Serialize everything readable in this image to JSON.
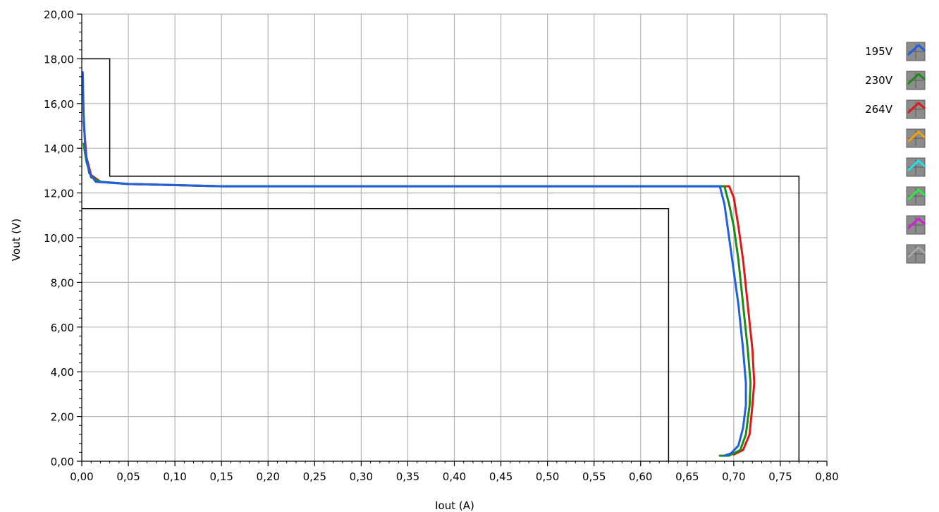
{
  "chart_data": {
    "type": "line",
    "title": "",
    "xlabel": "Iout (A)",
    "ylabel": "Vout (V)",
    "xlim": [
      0,
      0.8
    ],
    "ylim": [
      0,
      20
    ],
    "x_ticks": [
      "0,00",
      "0,05",
      "0,10",
      "0,15",
      "0,20",
      "0,25",
      "0,30",
      "0,35",
      "0,40",
      "0,45",
      "0,50",
      "0,55",
      "0,60",
      "0,65",
      "0,70",
      "0,75",
      "0,80"
    ],
    "y_ticks": [
      "0,00",
      "2,00",
      "4,00",
      "6,00",
      "8,00",
      "10,00",
      "12,00",
      "14,00",
      "16,00",
      "18,00",
      "20,00"
    ],
    "grid": true,
    "legend_position": "right",
    "limit_lines": [
      {
        "name": "upper-limit",
        "color": "#000000",
        "points": [
          [
            0,
            18.0
          ],
          [
            0.03,
            18.0
          ],
          [
            0.03,
            12.75
          ],
          [
            0.77,
            12.75
          ],
          [
            0.77,
            0
          ]
        ]
      },
      {
        "name": "lower-limit",
        "color": "#000000",
        "points": [
          [
            0,
            11.3
          ],
          [
            0.63,
            11.3
          ],
          [
            0.63,
            0
          ]
        ]
      }
    ],
    "series": [
      {
        "name": "195V",
        "color": "#1f5fe0",
        "points": [
          [
            0.001,
            17.4
          ],
          [
            0.002,
            15.5
          ],
          [
            0.004,
            13.8
          ],
          [
            0.008,
            12.9
          ],
          [
            0.015,
            12.5
          ],
          [
            0.05,
            12.4
          ],
          [
            0.15,
            12.3
          ],
          [
            0.4,
            12.3
          ],
          [
            0.6,
            12.3
          ],
          [
            0.67,
            12.3
          ],
          [
            0.685,
            12.3
          ],
          [
            0.69,
            11.5
          ],
          [
            0.695,
            10.0
          ],
          [
            0.7,
            8.5
          ],
          [
            0.705,
            7.0
          ],
          [
            0.71,
            5.0
          ],
          [
            0.713,
            3.5
          ],
          [
            0.713,
            2.5
          ],
          [
            0.71,
            1.5
          ],
          [
            0.705,
            0.7
          ],
          [
            0.697,
            0.35
          ],
          [
            0.69,
            0.25
          ]
        ]
      },
      {
        "name": "230V",
        "color": "#1a8c1a",
        "points": [
          [
            0.002,
            14.2
          ],
          [
            0.005,
            13.4
          ],
          [
            0.01,
            12.7
          ],
          [
            0.02,
            12.5
          ],
          [
            0.05,
            12.4
          ],
          [
            0.15,
            12.3
          ],
          [
            0.4,
            12.3
          ],
          [
            0.6,
            12.3
          ],
          [
            0.68,
            12.3
          ],
          [
            0.69,
            12.3
          ],
          [
            0.695,
            11.5
          ],
          [
            0.7,
            10.5
          ],
          [
            0.705,
            9.0
          ],
          [
            0.71,
            7.0
          ],
          [
            0.715,
            5.0
          ],
          [
            0.718,
            3.5
          ],
          [
            0.717,
            2.5
          ],
          [
            0.713,
            1.2
          ],
          [
            0.707,
            0.5
          ],
          [
            0.695,
            0.25
          ],
          [
            0.685,
            0.25
          ]
        ]
      },
      {
        "name": "264V",
        "color": "#e01818",
        "points": [
          [
            0.002,
            15.2
          ],
          [
            0.005,
            13.6
          ],
          [
            0.01,
            12.8
          ],
          [
            0.02,
            12.5
          ],
          [
            0.05,
            12.4
          ],
          [
            0.15,
            12.3
          ],
          [
            0.4,
            12.3
          ],
          [
            0.6,
            12.3
          ],
          [
            0.69,
            12.3
          ],
          [
            0.695,
            12.3
          ],
          [
            0.7,
            11.8
          ],
          [
            0.705,
            10.5
          ],
          [
            0.71,
            9.0
          ],
          [
            0.715,
            7.0
          ],
          [
            0.72,
            5.0
          ],
          [
            0.722,
            3.5
          ],
          [
            0.72,
            2.5
          ],
          [
            0.717,
            1.2
          ],
          [
            0.71,
            0.5
          ],
          [
            0.7,
            0.3
          ]
        ]
      }
    ],
    "legend_extra_swatch_colors": [
      "#f0a010",
      "#20e0e8",
      "#30e840",
      "#d020d0",
      "#a8a8a8"
    ]
  }
}
